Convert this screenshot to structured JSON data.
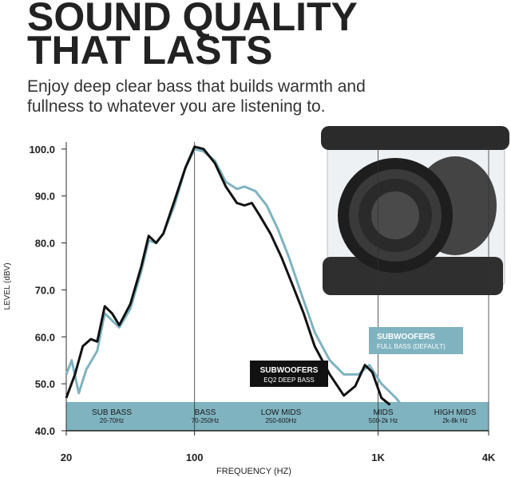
{
  "chart_data": {
    "type": "line",
    "title": [
      "SOUND QUALITY",
      "THAT LASTS"
    ],
    "subtitle": [
      "Enjoy deep clear bass that builds warmth and",
      "fullness to whatever you are listening to."
    ],
    "xlabel": "FREQUENCY (HZ)",
    "ylabel": "LEVEL (dBV)",
    "xscale": "log",
    "xlim": [
      20,
      4000
    ],
    "xticks": [
      20,
      100,
      {
        "value": 1000,
        "label": "1K"
      },
      {
        "value": 4000,
        "label": "4K"
      }
    ],
    "ylim": [
      40,
      101.5
    ],
    "yticks": [
      {
        "value": 40,
        "label": "40.0"
      },
      {
        "value": 50,
        "label": "50.0"
      },
      {
        "value": 60,
        "label": "60.0"
      },
      {
        "value": 70,
        "label": "70.0"
      },
      {
        "value": 80,
        "label": "80.0"
      },
      {
        "value": 90,
        "label": "90.0"
      },
      {
        "value": 100,
        "label": "100.0"
      }
    ],
    "bands": [
      {
        "name": "SUB BASS",
        "range": "20-70Hz"
      },
      {
        "name": "BASS",
        "range": "70-250Hz"
      },
      {
        "name": "LOW MIDS",
        "range": "250-600Hz"
      },
      {
        "name": "MIDS",
        "range": "500-2k Hz"
      },
      {
        "name": "HIGH MIDS",
        "range": "2k-8k Hz"
      }
    ],
    "band_color": "#7fb3c0",
    "series": [
      {
        "name": "SUBWOOFERS",
        "mode": "EQ2 DEEP BASS",
        "color": "#111111",
        "x": [
          20,
          22.3,
          24.6,
          27.2,
          29.5,
          32.4,
          35.5,
          38.9,
          44.7,
          51.3,
          56.2,
          61.7,
          67.6,
          77.7,
          89.1,
          100,
          112,
          129,
          148,
          170,
          187,
          205,
          225,
          259,
          297,
          342,
          393,
          451,
          545,
          651,
          750,
          847,
          929,
          1042,
          1161
        ],
        "values": [
          47,
          52,
          58,
          59.5,
          59,
          66.5,
          65,
          62.5,
          67,
          75,
          81.5,
          80,
          82,
          89,
          96,
          100.5,
          100,
          97,
          92,
          88.5,
          88,
          88.5,
          86,
          82,
          77,
          71,
          65,
          58,
          52,
          47.5,
          49.5,
          54,
          52.5,
          47,
          45.5
        ]
      },
      {
        "name": "SUBWOOFERS",
        "mode": "FULL BASS (DEFAULT)",
        "color": "#7fb3c0",
        "x": [
          20,
          21.4,
          23.4,
          25.7,
          29.5,
          32.4,
          35.5,
          38.9,
          44.7,
          51.3,
          56.2,
          61.7,
          67.6,
          77.7,
          89.1,
          100,
          112,
          129,
          148,
          170,
          187,
          215,
          247,
          284,
          326,
          375,
          451,
          545,
          651,
          781,
          896,
          1042,
          1249,
          1310
        ],
        "values": [
          52,
          55,
          48,
          53,
          57,
          65,
          63.5,
          62,
          66,
          74,
          80.5,
          80,
          82,
          88,
          96,
          100,
          99.5,
          97.5,
          93,
          91.5,
          92,
          91,
          88,
          83,
          77,
          70,
          61,
          55,
          52,
          52,
          54,
          50,
          47,
          46
        ]
      }
    ]
  }
}
